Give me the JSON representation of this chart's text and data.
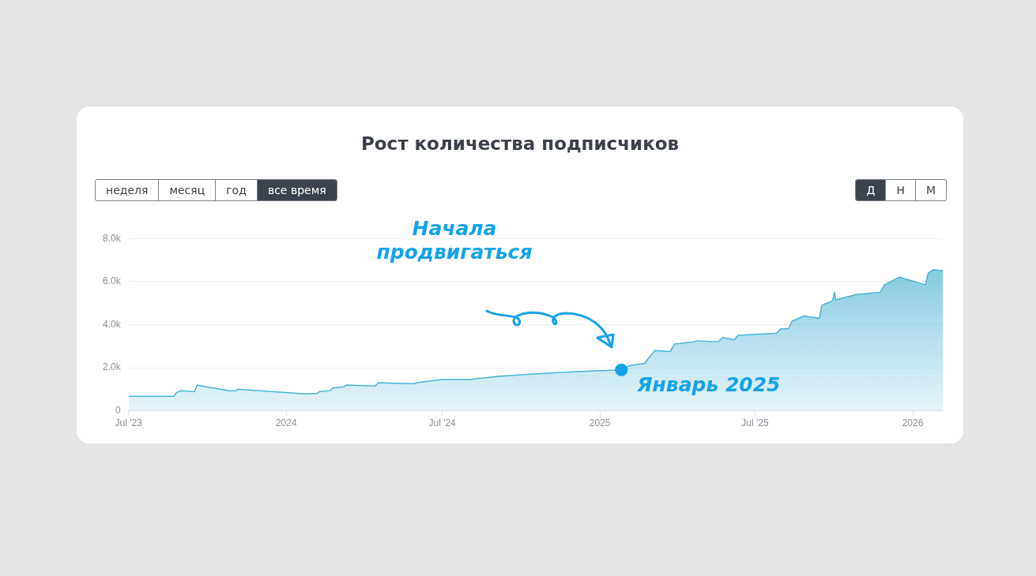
{
  "chart_data": {
    "type": "area",
    "title": "Рост количества подписчиков",
    "x": [
      "2023-07-01",
      "2023-08-23",
      "2023-08-26",
      "2023-08-31",
      "2023-09-16",
      "2023-09-19",
      "2023-10-23",
      "2023-10-26",
      "2023-11-04",
      "2023-11-05",
      "2024-01-24",
      "2024-02-06",
      "2024-02-09",
      "2024-02-21",
      "2024-02-25",
      "2024-03-08",
      "2024-03-11",
      "2024-04-14",
      "2024-04-17",
      "2024-05-28",
      "2024-06-06",
      "2024-07-01",
      "2024-08-04",
      "2024-08-07",
      "2024-09-04",
      "2024-10-11",
      "2024-11-30",
      "2025-01-18",
      "2025-01-26",
      "2025-02-03",
      "2025-02-06",
      "2025-02-22",
      "2025-03-06",
      "2025-03-24",
      "2025-03-29",
      "2025-04-21",
      "2025-04-24",
      "2025-05-19",
      "2025-05-24",
      "2025-06-07",
      "2025-06-11",
      "2025-07-26",
      "2025-07-31",
      "2025-08-09",
      "2025-08-13",
      "2025-08-27",
      "2025-09-14",
      "2025-09-17",
      "2025-09-29",
      "2025-10-02",
      "2025-10-03",
      "2025-10-27",
      "2025-11-24",
      "2025-11-29",
      "2025-12-16",
      "2026-01-16",
      "2026-01-19",
      "2026-01-25",
      "2026-02-05"
    ],
    "series": [
      {
        "color": "#4cb3d4",
        "values": [
          670,
          670,
          850,
          930,
          890,
          1190,
          960,
          930,
          930,
          1000,
          780,
          810,
          890,
          930,
          1070,
          1110,
          1190,
          1150,
          1300,
          1260,
          1330,
          1450,
          1450,
          1480,
          1600,
          1700,
          1810,
          1890,
          1900,
          2070,
          2100,
          2200,
          2800,
          2750,
          3100,
          3200,
          3250,
          3200,
          3400,
          3300,
          3500,
          3600,
          3800,
          3800,
          4150,
          4400,
          4300,
          4900,
          5100,
          5500,
          5150,
          5400,
          5500,
          5850,
          6200,
          5850,
          6400,
          6550,
          6500
        ]
      }
    ],
    "xlim": [
      "2023-07-01",
      "2026-02-05"
    ],
    "xticks": [
      {
        "value": "2023-07-01",
        "label": "Jul '23"
      },
      {
        "value": "2024-01-01",
        "label": "2024"
      },
      {
        "value": "2024-07-01",
        "label": "Jul '24"
      },
      {
        "value": "2025-01-01",
        "label": "2025"
      },
      {
        "value": "2025-07-01",
        "label": "Jul '25"
      },
      {
        "value": "2026-01-01",
        "label": "2026"
      }
    ],
    "ylim": [
      0,
      8000
    ],
    "yticks": [
      0,
      {
        "value": 2000,
        "label": "2.0k"
      },
      {
        "value": 4000,
        "label": "4.0k"
      },
      {
        "value": 6000,
        "label": "6.0k"
      },
      {
        "value": 8000,
        "label": "8.0k"
      }
    ],
    "grid": "y",
    "legend": false,
    "marker": "none",
    "annotations": [
      "неделя",
      "месяц",
      "год",
      "все время",
      "Д",
      "Н",
      "М",
      "Начала продвигаться",
      {
        "text": "Январь 2025",
        "x": "2025-01-26",
        "y": 1900
      }
    ]
  }
}
